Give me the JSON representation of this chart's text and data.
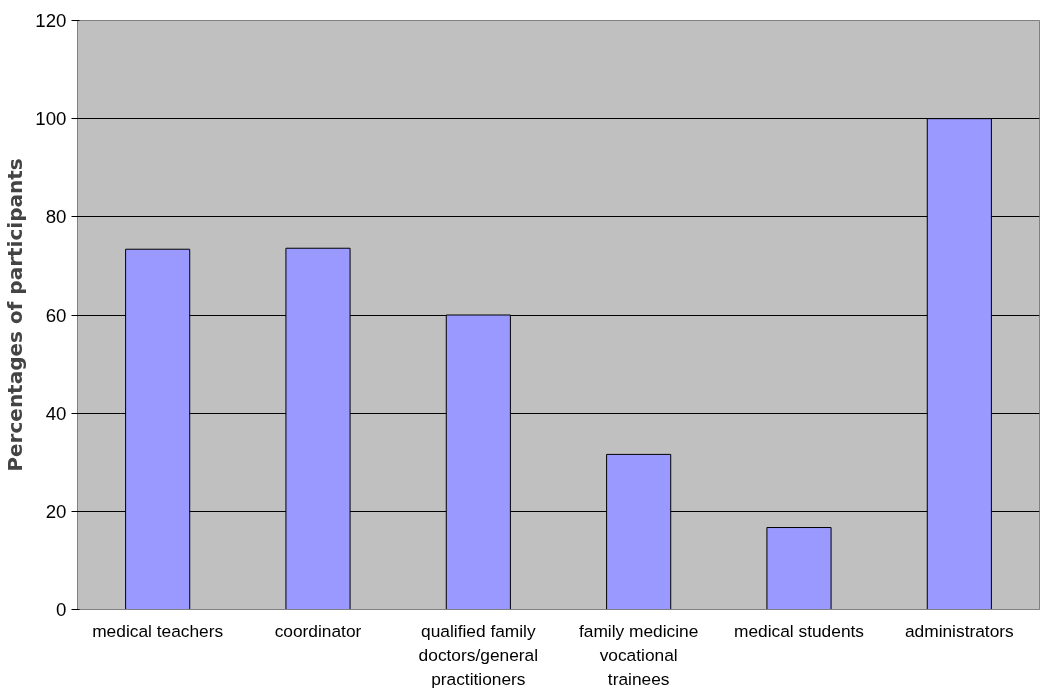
{
  "chart_data": {
    "type": "bar",
    "ylabel": "Percentages of participants",
    "categories": [
      "medical teachers",
      "coordinator",
      "qualified family doctors/general practitioners",
      "family medicine vocational trainees",
      "medical students",
      "administrators"
    ],
    "values": [
      73.4,
      73.6,
      60,
      31.6,
      16.7,
      100
    ],
    "color": "#9999ff",
    "ylim": [
      0,
      120
    ],
    "yticks": [
      0,
      20,
      40,
      60,
      80,
      100,
      120
    ],
    "grid": "y"
  }
}
